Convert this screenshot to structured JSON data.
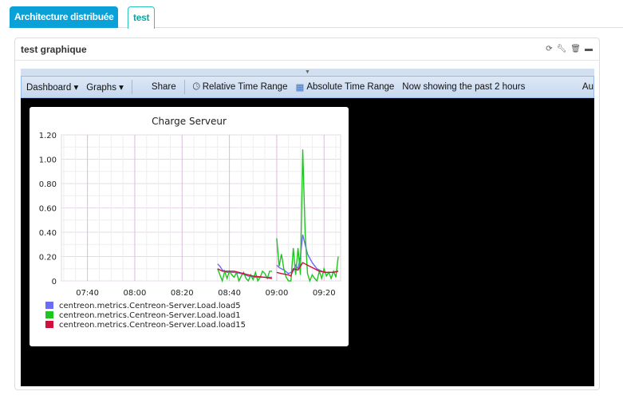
{
  "tabs": [
    {
      "label": "Architecture distribuée",
      "active": false
    },
    {
      "label": "test",
      "active": true
    }
  ],
  "widget": {
    "title": "test graphique",
    "icons": [
      "refresh-icon",
      "wrench-icon",
      "trash-icon",
      "minimize-icon"
    ]
  },
  "toolbar": {
    "dashboard": "Dashboard",
    "graphs": "Graphs",
    "share": "Share",
    "relative": "Relative Time Range",
    "absolute": "Absolute Time Range",
    "status": "Now showing the past 2 hours",
    "auto": "Au"
  },
  "chart_data": {
    "type": "line",
    "title": "Charge Serveur",
    "xlabel": "",
    "ylabel": "",
    "ylim": [
      0,
      1.2
    ],
    "yticks": [
      "0",
      "0.20",
      "0.40",
      "0.60",
      "0.80",
      "1.00",
      "1.20"
    ],
    "xlim": [
      "07:29",
      "09:27"
    ],
    "xticks": [
      "07:40",
      "08:00",
      "08:20",
      "08:40",
      "09:00",
      "09:20"
    ],
    "grid": true,
    "legend_position": "bottom-left",
    "series": [
      {
        "name": "centreon.metrics.Centreon-Server.Load.load5",
        "color": "#6b6bf5",
        "points": [
          [
            "08:35",
            0.14
          ],
          [
            "08:36",
            0.12
          ],
          [
            "08:37",
            0.09
          ],
          [
            "08:39",
            0.07
          ],
          [
            "08:42",
            0.07
          ],
          [
            "08:45",
            0.06
          ],
          [
            "08:48",
            0.04
          ],
          [
            "08:51",
            0.03
          ],
          [
            "08:55",
            0.03
          ],
          [
            "08:58",
            0.03
          ],
          [
            "08:59",
            null
          ],
          [
            "09:00",
            0.13
          ],
          [
            "09:01",
            0.11
          ],
          [
            "09:03",
            0.09
          ],
          [
            "09:05",
            0.06
          ],
          [
            "09:07",
            0.08
          ],
          [
            "09:08",
            0.13
          ],
          [
            "09:09",
            0.1
          ],
          [
            "09:10",
            0.2
          ],
          [
            "09:11",
            0.38
          ],
          [
            "09:12",
            0.3
          ],
          [
            "09:13",
            0.22
          ],
          [
            "09:15",
            0.15
          ],
          [
            "09:17",
            0.1
          ],
          [
            "09:20",
            0.07
          ],
          [
            "09:23",
            0.07
          ],
          [
            "09:26",
            0.08
          ]
        ]
      },
      {
        "name": "centreon.metrics.Centreon-Server.Load.load1",
        "color": "#1ec51e",
        "points": [
          [
            "08:35",
            0.1
          ],
          [
            "08:36",
            0.05
          ],
          [
            "08:37",
            0.0
          ],
          [
            "08:38",
            0.08
          ],
          [
            "08:39",
            0.02
          ],
          [
            "08:40",
            0.08
          ],
          [
            "08:41",
            0.05
          ],
          [
            "08:42",
            0.03
          ],
          [
            "08:43",
            0.07
          ],
          [
            "08:44",
            0.0
          ],
          [
            "08:45",
            0.04
          ],
          [
            "08:46",
            0.07
          ],
          [
            "08:47",
            0.02
          ],
          [
            "08:48",
            0.0
          ],
          [
            "08:49",
            0.05
          ],
          [
            "08:50",
            0.01
          ],
          [
            "08:51",
            0.07
          ],
          [
            "08:52",
            0.0
          ],
          [
            "08:53",
            0.03
          ],
          [
            "08:54",
            0.08
          ],
          [
            "08:55",
            0.06
          ],
          [
            "08:56",
            0.02
          ],
          [
            "08:57",
            0.08
          ],
          [
            "08:58",
            0.08
          ],
          [
            "08:59",
            null
          ],
          [
            "09:00",
            0.35
          ],
          [
            "09:01",
            0.12
          ],
          [
            "09:02",
            0.22
          ],
          [
            "09:03",
            0.1
          ],
          [
            "09:04",
            0.03
          ],
          [
            "09:05",
            0.0
          ],
          [
            "09:06",
            0.0
          ],
          [
            "09:07",
            0.27
          ],
          [
            "09:08",
            0.05
          ],
          [
            "09:09",
            0.27
          ],
          [
            "09:10",
            0.05
          ],
          [
            "09:11",
            1.08
          ],
          [
            "09:12",
            0.4
          ],
          [
            "09:13",
            0.06
          ],
          [
            "09:14",
            0.0
          ],
          [
            "09:15",
            0.05
          ],
          [
            "09:16",
            0.02
          ],
          [
            "09:17",
            0.0
          ],
          [
            "09:18",
            0.08
          ],
          [
            "09:19",
            0.02
          ],
          [
            "09:20",
            0.1
          ],
          [
            "09:21",
            0.04
          ],
          [
            "09:22",
            0.07
          ],
          [
            "09:23",
            0.02
          ],
          [
            "09:24",
            0.08
          ],
          [
            "09:25",
            0.03
          ],
          [
            "09:26",
            0.2
          ]
        ]
      },
      {
        "name": "centreon.metrics.Centreon-Server.Load.load15",
        "color": "#d0103a",
        "points": [
          [
            "08:35",
            0.1
          ],
          [
            "08:37",
            0.08
          ],
          [
            "08:42",
            0.08
          ],
          [
            "08:46",
            0.06
          ],
          [
            "08:50",
            0.04
          ],
          [
            "08:55",
            0.03
          ],
          [
            "08:58",
            0.02
          ],
          [
            "08:59",
            null
          ],
          [
            "09:00",
            0.07
          ],
          [
            "09:02",
            0.06
          ],
          [
            "09:05",
            0.05
          ],
          [
            "09:06",
            0.04
          ],
          [
            "09:07",
            0.1
          ],
          [
            "09:09",
            0.09
          ],
          [
            "09:10",
            0.12
          ],
          [
            "09:11",
            0.15
          ],
          [
            "09:13",
            0.13
          ],
          [
            "09:15",
            0.11
          ],
          [
            "09:18",
            0.08
          ],
          [
            "09:21",
            0.07
          ],
          [
            "09:24",
            0.07
          ],
          [
            "09:26",
            0.08
          ]
        ]
      }
    ]
  }
}
